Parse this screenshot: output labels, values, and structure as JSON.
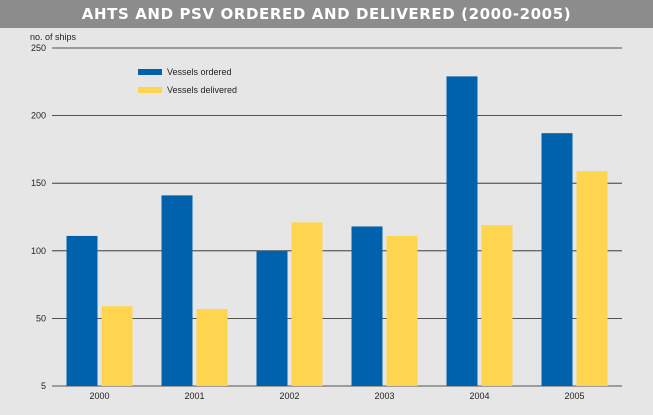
{
  "chart_data": {
    "type": "bar",
    "title": "AHTS AND PSV ORDERED AND DELIVERED (2000-2005)",
    "ylabel": "no. of ships",
    "xlabel": "",
    "categories": [
      "2000",
      "2001",
      "2002",
      "2003",
      "2004",
      "2005"
    ],
    "y_tick_labels": [
      "5",
      "50",
      "100",
      "150",
      "200",
      "250"
    ],
    "ylim": [
      0,
      250
    ],
    "grid": true,
    "legend_position": "top-left",
    "series": [
      {
        "name": "Vessels ordered",
        "color": "#0062ad",
        "values": [
          111,
          141,
          100,
          118,
          229,
          187
        ]
      },
      {
        "name": "Vessels delivered",
        "color": "#ffd54f",
        "values": [
          59,
          57,
          121,
          111,
          119,
          159
        ]
      }
    ]
  }
}
